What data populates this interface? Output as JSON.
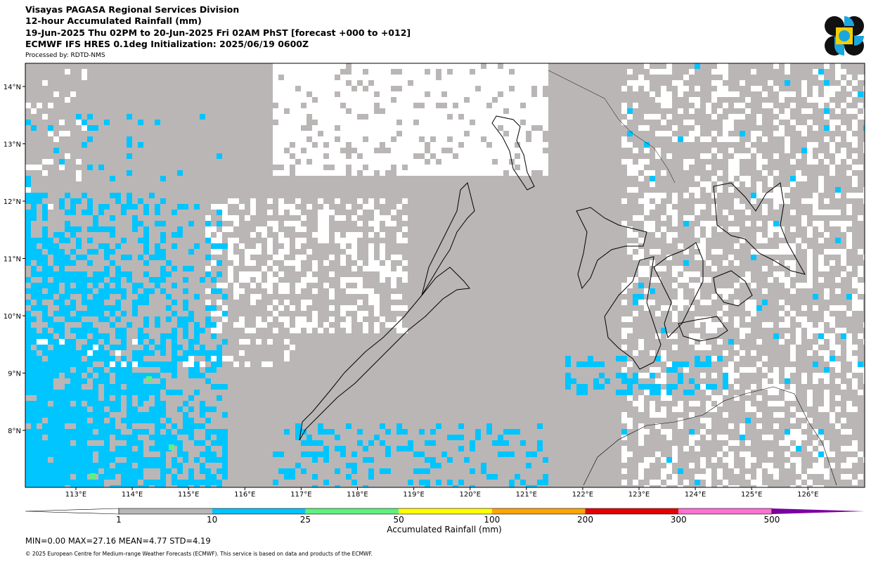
{
  "header": {
    "lines": [
      "Visayas PAGASA Regional Services Division",
      "12-hour Accumulated Rainfall (mm)",
      "19-Jun-2025 Thu 02PM to 20-Jun-2025 Fri 02AM PhST [forecast +000 to +012]",
      "ECMWF IFS HRES 0.1deg Initialization: 2025/06/19 0600Z"
    ],
    "processed_by": "Processed by: RDTD-NMS"
  },
  "map": {
    "lon_labels": [
      "113°E",
      "114°E",
      "115°E",
      "116°E",
      "117°E",
      "118°E",
      "119°E",
      "120°E",
      "121°E",
      "122°E",
      "123°E",
      "124°E",
      "125°E",
      "126°E"
    ],
    "lat_labels": [
      "14°N",
      "13°N",
      "12°N",
      "11°N",
      "10°N",
      "9°N",
      "8°N"
    ]
  },
  "colorbar": {
    "label": "Accumulated Rainfall (mm)",
    "levels": [
      1,
      10,
      25,
      50,
      100,
      200,
      300,
      500
    ],
    "colors": [
      "#bab6b6",
      "#00c5ff",
      "#5cf27c",
      "#ffff00",
      "#ffa500",
      "#e60000",
      "#ff70d2"
    ],
    "under_color": "#ffffff",
    "over_color": "#7a00a0"
  },
  "stats": "MIN=0.00   MAX=27.16   MEAN=4.77   STD=4.19",
  "footer": "© 2025 European Centre for Medium-range Weather Forecasts (ECMWF). This service is based on data and products of the ECMWF."
}
